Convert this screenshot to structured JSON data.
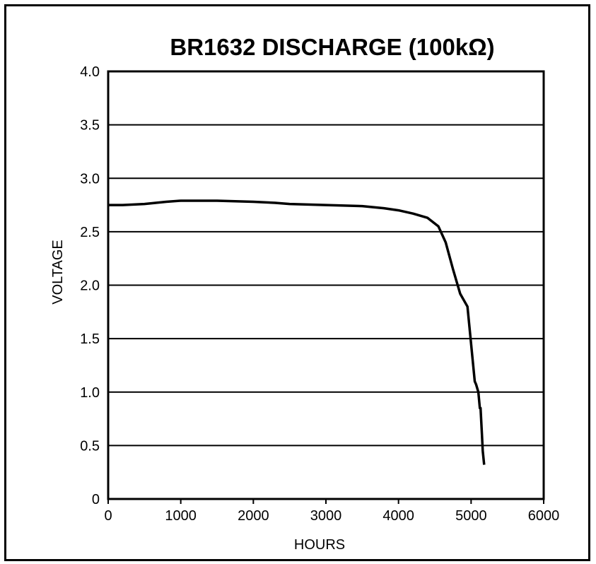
{
  "chart_data": {
    "type": "line",
    "title": "BR1632  DISCHARGE (100kΩ)",
    "xlabel": "HOURS",
    "ylabel": "VOLTAGE",
    "xlim": [
      0,
      6000
    ],
    "ylim": [
      0,
      4.0
    ],
    "x_ticks": [
      "0",
      "1000",
      "2000",
      "3000",
      "4000",
      "5000",
      "6000"
    ],
    "y_ticks": [
      "0",
      "0.5",
      "1.0",
      "1.5",
      "2.0",
      "2.5",
      "3.0",
      "3.5",
      "4.0"
    ],
    "grid": "horizontal",
    "legend": "none",
    "series": [
      {
        "color": "#000000",
        "x": [
          0,
          200,
          500,
          800,
          1000,
          1500,
          2000,
          2300,
          2500,
          3000,
          3500,
          3800,
          4000,
          4200,
          4400,
          4550,
          4650,
          4750,
          4850,
          4950,
          5050,
          5070,
          5100,
          5120,
          5130,
          5150,
          5160,
          5180
        ],
        "y": [
          2.75,
          2.75,
          2.76,
          2.78,
          2.79,
          2.79,
          2.78,
          2.77,
          2.76,
          2.75,
          2.74,
          2.72,
          2.7,
          2.67,
          2.63,
          2.55,
          2.4,
          2.15,
          1.92,
          1.8,
          1.1,
          1.07,
          1.0,
          0.85,
          0.85,
          0.6,
          0.45,
          0.32
        ]
      }
    ]
  }
}
